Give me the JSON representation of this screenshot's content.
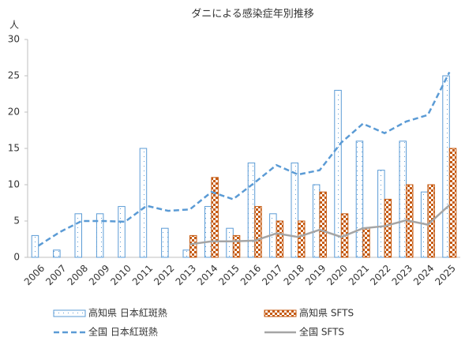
{
  "chart_data": {
    "type": "bar",
    "title": "ダニによる感染症年別推移",
    "y_label": "人",
    "categories": [
      "2006",
      "2007",
      "2008",
      "2009",
      "2010",
      "2011",
      "2012",
      "2013",
      "2014",
      "2015",
      "2016",
      "2017",
      "2018",
      "2019",
      "2020",
      "2021",
      "2022",
      "2023",
      "2024",
      "2025"
    ],
    "ylim": [
      0,
      30
    ],
    "yticks": [
      0,
      5,
      10,
      15,
      20,
      25,
      30
    ],
    "grid": false,
    "series": [
      {
        "name": "高知県 日本紅斑熱",
        "mark": "bar",
        "color": "#5b9bd5",
        "values": [
          3,
          1,
          6,
          6,
          7,
          15,
          4,
          1,
          7,
          4,
          13,
          6,
          13,
          10,
          23,
          16,
          12,
          16,
          9,
          25
        ]
      },
      {
        "name": "高知県 SFTS",
        "mark": "bar",
        "color": "#c55a11",
        "values": [
          null,
          null,
          null,
          null,
          null,
          null,
          null,
          3,
          11,
          3,
          7,
          5,
          5,
          9,
          6,
          4,
          8,
          10,
          10,
          15
        ]
      },
      {
        "name": "全国 日本紅斑熱",
        "mark": "line",
        "dashed": true,
        "color": "#5b9bd5",
        "values": [
          1.6,
          3.5,
          5.0,
          5.0,
          4.9,
          7.1,
          6.4,
          6.6,
          9.0,
          8.0,
          10.3,
          12.7,
          11.4,
          12.0,
          15.8,
          18.4,
          17.1,
          18.7,
          19.6,
          25.5
        ]
      },
      {
        "name": "全国 SFTS",
        "mark": "line",
        "dashed": false,
        "color": "#a5a5a5",
        "values": [
          null,
          null,
          null,
          null,
          null,
          null,
          null,
          1.8,
          2.2,
          2.2,
          2.3,
          3.3,
          2.8,
          3.8,
          2.8,
          4.0,
          4.3,
          5.1,
          4.5,
          7.2
        ]
      }
    ]
  }
}
